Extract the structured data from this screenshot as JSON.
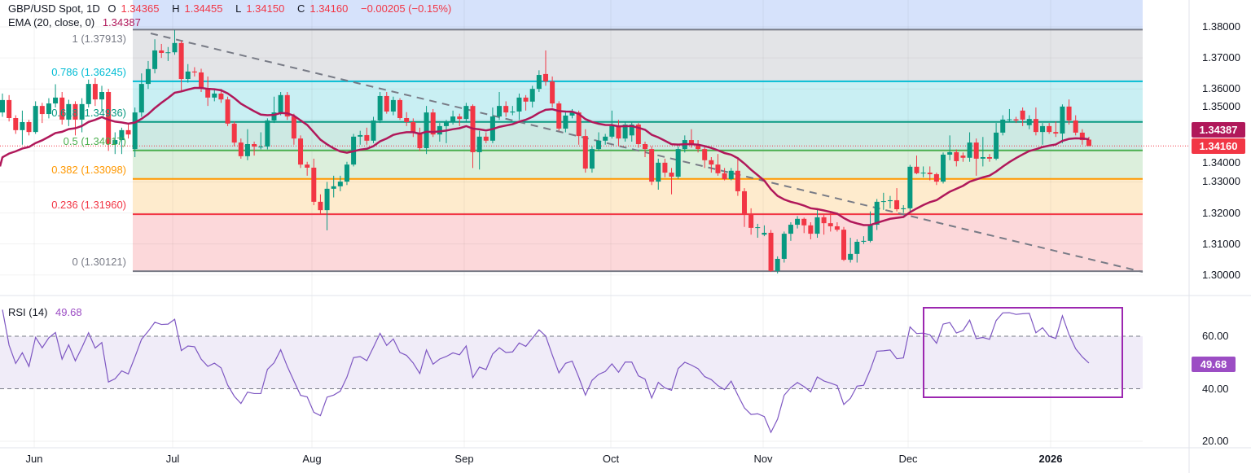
{
  "header": {
    "symbol": "GBP/USD Spot, 1D",
    "o_label": "O",
    "o": "1.34365",
    "h_label": "H",
    "h": "1.34455",
    "l_label": "L",
    "l": "1.34150",
    "c_label": "C",
    "c": "1.34160",
    "change": "−0.00205 (−0.15%)",
    "ema_label": "EMA (20, close, 0)",
    "ema_value": "1.34387"
  },
  "rsi_header": {
    "label": "RSI (14)",
    "value": "49.68"
  },
  "badges": {
    "ema": "1.34387",
    "close": "1.34160",
    "rsi": "49.68"
  },
  "colors": {
    "up": "#089981",
    "down": "#f23645",
    "ema": "#b0185a",
    "rsi": "#7e57c2",
    "rsi_box": "#9c27b0",
    "trendline": "#787b86"
  },
  "fib_levels": [
    {
      "label": "1 (1.37913)",
      "ratio": 1,
      "price": 1.37913,
      "color": "#787b86",
      "fill": "#e3e4e7"
    },
    {
      "label": "0.786 (1.36245)",
      "ratio": 0.786,
      "price": 1.36245,
      "color": "#00bcd4",
      "fill": "#c9eff3"
    },
    {
      "label": "0.618 (1.34936)",
      "ratio": 0.618,
      "price": 1.34936,
      "color": "#089981",
      "fill": "#cde9e3"
    },
    {
      "label": "0.5 (1.34017)",
      "ratio": 0.5,
      "price": 1.34017,
      "color": "#4caf50",
      "fill": "#dcefdc"
    },
    {
      "label": "0.382 (1.33098)",
      "ratio": 0.382,
      "price": 1.33098,
      "color": "#ff9800",
      "fill": "#feebcd"
    },
    {
      "label": "0.236 (1.31960)",
      "ratio": 0.236,
      "price": 1.3196,
      "color": "#f23645",
      "fill": "#fcd8da"
    },
    {
      "label": "0 (1.30121)",
      "ratio": 0,
      "price": 1.30121,
      "color": "#787b86",
      "fill": null
    }
  ],
  "price_axis": [
    "1.38000",
    "1.37000",
    "1.36000",
    "1.35000",
    "1.34000",
    "1.33000",
    "1.32000",
    "1.31000",
    "1.30000"
  ],
  "rsi_axis": [
    "60.00",
    "40.00",
    "20.00"
  ],
  "x_axis": [
    {
      "label": "Jun",
      "bold": false
    },
    {
      "label": "Jul",
      "bold": false
    },
    {
      "label": "Aug",
      "bold": false
    },
    {
      "label": "Sep",
      "bold": false
    },
    {
      "label": "Oct",
      "bold": false
    },
    {
      "label": "Nov",
      "bold": false
    },
    {
      "label": "Dec",
      "bold": false
    },
    {
      "label": "2026",
      "bold": true
    }
  ],
  "chart_data": {
    "type": "candlestick",
    "title": "GBP/USD Spot, 1D",
    "ylim": [
      1.2985,
      1.3885
    ],
    "rsi_ylim": [
      15,
      75
    ],
    "rsi_bands": [
      40,
      60
    ],
    "ema_period": 20,
    "rsi_period": 14,
    "ohlc": [
      [
        1.3524,
        1.3585,
        1.351,
        1.3564
      ],
      [
        1.3564,
        1.358,
        1.3495,
        1.3506
      ],
      [
        1.3506,
        1.3515,
        1.3455,
        1.3467
      ],
      [
        1.3467,
        1.353,
        1.342,
        1.3493
      ],
      [
        1.3493,
        1.35,
        1.345,
        1.3461
      ],
      [
        1.3461,
        1.356,
        1.3455,
        1.3545
      ],
      [
        1.3545,
        1.3555,
        1.349,
        1.3519
      ],
      [
        1.3519,
        1.357,
        1.3505,
        1.3553
      ],
      [
        1.3553,
        1.3615,
        1.354,
        1.3572
      ],
      [
        1.3572,
        1.359,
        1.3485,
        1.3501
      ],
      [
        1.3501,
        1.3565,
        1.348,
        1.3551
      ],
      [
        1.3551,
        1.356,
        1.345,
        1.3501
      ],
      [
        1.3501,
        1.357,
        1.346,
        1.3551
      ],
      [
        1.3551,
        1.363,
        1.354,
        1.3616
      ],
      [
        1.3616,
        1.3635,
        1.3545,
        1.3566
      ],
      [
        1.3566,
        1.361,
        1.353,
        1.359
      ],
      [
        1.359,
        1.36,
        1.34,
        1.3422
      ],
      [
        1.3422,
        1.346,
        1.339,
        1.3435
      ],
      [
        1.3435,
        1.3475,
        1.339,
        1.3467
      ],
      [
        1.3467,
        1.349,
        1.344,
        1.3453
      ],
      [
        1.3406,
        1.354,
        1.338,
        1.3524
      ],
      [
        1.3524,
        1.365,
        1.351,
        1.3616
      ],
      [
        1.3616,
        1.369,
        1.36,
        1.3664
      ],
      [
        1.3664,
        1.376,
        1.365,
        1.3724
      ],
      [
        1.3724,
        1.3745,
        1.37,
        1.3716
      ],
      [
        1.3716,
        1.3735,
        1.369,
        1.3718
      ],
      [
        1.3718,
        1.379,
        1.371,
        1.3748
      ],
      [
        1.3748,
        1.3755,
        1.3595,
        1.3632
      ],
      [
        1.3632,
        1.368,
        1.362,
        1.3656
      ],
      [
        1.3656,
        1.367,
        1.364,
        1.3653
      ],
      [
        1.3653,
        1.3665,
        1.359,
        1.3603
      ],
      [
        1.3603,
        1.364,
        1.3545,
        1.3572
      ],
      [
        1.3572,
        1.36,
        1.356,
        1.3585
      ],
      [
        1.3585,
        1.36,
        1.3555,
        1.3566
      ],
      [
        1.3566,
        1.3575,
        1.348,
        1.3488
      ],
      [
        1.3488,
        1.3495,
        1.3415,
        1.3427
      ],
      [
        1.3427,
        1.344,
        1.3375,
        1.3383
      ],
      [
        1.3383,
        1.347,
        1.337,
        1.3422
      ],
      [
        1.3422,
        1.343,
        1.3385,
        1.3414
      ],
      [
        1.3414,
        1.346,
        1.3405,
        1.3414
      ],
      [
        1.3414,
        1.3505,
        1.3405,
        1.3498
      ],
      [
        1.3498,
        1.3575,
        1.349,
        1.3524
      ],
      [
        1.3524,
        1.359,
        1.3515,
        1.358
      ],
      [
        1.358,
        1.359,
        1.35,
        1.3511
      ],
      [
        1.3511,
        1.352,
        1.342,
        1.344
      ],
      [
        1.344,
        1.345,
        1.3345,
        1.3356
      ],
      [
        1.3356,
        1.3365,
        1.332,
        1.3346
      ],
      [
        1.3346,
        1.3375,
        1.3225,
        1.3236
      ],
      [
        1.3236,
        1.326,
        1.3196,
        1.3209
      ],
      [
        1.3209,
        1.33,
        1.3144,
        1.3278
      ],
      [
        1.3278,
        1.332,
        1.325,
        1.3286
      ],
      [
        1.3286,
        1.332,
        1.327,
        1.3301
      ],
      [
        1.3301,
        1.3365,
        1.329,
        1.3356
      ],
      [
        1.3356,
        1.3455,
        1.335,
        1.3446
      ],
      [
        1.3446,
        1.3465,
        1.342,
        1.3451
      ],
      [
        1.3451,
        1.3475,
        1.342,
        1.3433
      ],
      [
        1.3433,
        1.351,
        1.3425,
        1.3498
      ],
      [
        1.3498,
        1.359,
        1.349,
        1.3577
      ],
      [
        1.3577,
        1.359,
        1.352,
        1.3527
      ],
      [
        1.3527,
        1.3575,
        1.3515,
        1.3564
      ],
      [
        1.3564,
        1.357,
        1.35,
        1.3506
      ],
      [
        1.3506,
        1.3525,
        1.348,
        1.3493
      ],
      [
        1.3493,
        1.3505,
        1.3445,
        1.3459
      ],
      [
        1.3459,
        1.3475,
        1.34,
        1.3409
      ],
      [
        1.3409,
        1.3545,
        1.339,
        1.3524
      ],
      [
        1.3524,
        1.3535,
        1.3445,
        1.3453
      ],
      [
        1.3453,
        1.349,
        1.343,
        1.348
      ],
      [
        1.348,
        1.35,
        1.3425,
        1.3493
      ],
      [
        1.3493,
        1.353,
        1.3485,
        1.3511
      ],
      [
        1.3511,
        1.352,
        1.348,
        1.3503
      ],
      [
        1.3503,
        1.3555,
        1.3495,
        1.3545
      ],
      [
        1.3545,
        1.355,
        1.3345,
        1.3396
      ],
      [
        1.3396,
        1.3465,
        1.334,
        1.3446
      ],
      [
        1.3446,
        1.346,
        1.3425,
        1.3433
      ],
      [
        1.3433,
        1.354,
        1.3425,
        1.3511
      ],
      [
        1.3511,
        1.359,
        1.35,
        1.3545
      ],
      [
        1.3545,
        1.356,
        1.351,
        1.3524
      ],
      [
        1.3524,
        1.3545,
        1.3515,
        1.3527
      ],
      [
        1.3527,
        1.3585,
        1.35,
        1.3572
      ],
      [
        1.3572,
        1.358,
        1.353,
        1.3559
      ],
      [
        1.3559,
        1.361,
        1.354,
        1.36
      ],
      [
        1.36,
        1.366,
        1.359,
        1.3645
      ],
      [
        1.3648,
        1.3724,
        1.361,
        1.3624
      ],
      [
        1.3624,
        1.364,
        1.354,
        1.3553
      ],
      [
        1.3553,
        1.356,
        1.3465,
        1.3472
      ],
      [
        1.3472,
        1.353,
        1.346,
        1.3514
      ],
      [
        1.3514,
        1.3535,
        1.3505,
        1.3524
      ],
      [
        1.3524,
        1.353,
        1.342,
        1.3448
      ],
      [
        1.3448,
        1.347,
        1.333,
        1.3343
      ],
      [
        1.3343,
        1.3415,
        1.333,
        1.3406
      ],
      [
        1.3406,
        1.346,
        1.34,
        1.3433
      ],
      [
        1.3433,
        1.3455,
        1.342,
        1.3446
      ],
      [
        1.3446,
        1.353,
        1.344,
        1.348
      ],
      [
        1.348,
        1.35,
        1.3415,
        1.344
      ],
      [
        1.344,
        1.3495,
        1.343,
        1.3485
      ],
      [
        1.345,
        1.3495,
        1.343,
        1.3485
      ],
      [
        1.3485,
        1.349,
        1.341,
        1.3422
      ],
      [
        1.3422,
        1.343,
        1.338,
        1.3406
      ],
      [
        1.3406,
        1.3415,
        1.329,
        1.3301
      ],
      [
        1.3301,
        1.3375,
        1.3275,
        1.3362
      ],
      [
        1.3362,
        1.3375,
        1.3315,
        1.333
      ],
      [
        1.333,
        1.3345,
        1.326,
        1.3317
      ],
      [
        1.3317,
        1.3415,
        1.331,
        1.3406
      ],
      [
        1.3406,
        1.345,
        1.3395,
        1.3435
      ],
      [
        1.3435,
        1.347,
        1.341,
        1.3422
      ],
      [
        1.3422,
        1.3435,
        1.3395,
        1.3406
      ],
      [
        1.3406,
        1.3415,
        1.3345,
        1.337
      ],
      [
        1.337,
        1.338,
        1.333,
        1.3356
      ],
      [
        1.3356,
        1.339,
        1.332,
        1.3328
      ],
      [
        1.3328,
        1.3345,
        1.3305,
        1.3309
      ],
      [
        1.3309,
        1.3345,
        1.3305,
        1.3336
      ],
      [
        1.3336,
        1.338,
        1.3255,
        1.327
      ],
      [
        1.327,
        1.328,
        1.3155,
        1.3196
      ],
      [
        1.3196,
        1.3215,
        1.313,
        1.3152
      ],
      [
        1.3152,
        1.3165,
        1.312,
        1.3154
      ],
      [
        1.313,
        1.316,
        1.3125,
        1.3136
      ],
      [
        1.3136,
        1.3145,
        1.301,
        1.3013
      ],
      [
        1.3013,
        1.306,
        1.3005,
        1.3052
      ],
      [
        1.3052,
        1.314,
        1.304,
        1.3133
      ],
      [
        1.3133,
        1.317,
        1.311,
        1.3162
      ],
      [
        1.3162,
        1.319,
        1.315,
        1.3181
      ],
      [
        1.3181,
        1.3185,
        1.3135,
        1.316
      ],
      [
        1.316,
        1.317,
        1.3115,
        1.3133
      ],
      [
        1.3133,
        1.3215,
        1.312,
        1.3186
      ],
      [
        1.3186,
        1.3195,
        1.313,
        1.3167
      ],
      [
        1.3167,
        1.3205,
        1.314,
        1.3157
      ],
      [
        1.3157,
        1.317,
        1.314,
        1.3146
      ],
      [
        1.3146,
        1.3155,
        1.3045,
        1.3049
      ],
      [
        1.3049,
        1.312,
        1.304,
        1.3068
      ],
      [
        1.3068,
        1.3115,
        1.304,
        1.3107
      ],
      [
        1.3107,
        1.3125,
        1.31,
        1.311
      ],
      [
        1.311,
        1.3205,
        1.3105,
        1.3162
      ],
      [
        1.3162,
        1.3245,
        1.3145,
        1.3236
      ],
      [
        1.3236,
        1.3265,
        1.321,
        1.3238
      ],
      [
        1.3238,
        1.3255,
        1.3215,
        1.3241
      ],
      [
        1.3241,
        1.328,
        1.3205,
        1.3212
      ],
      [
        1.3212,
        1.3225,
        1.32,
        1.3215
      ],
      [
        1.3215,
        1.3355,
        1.3205,
        1.3349
      ],
      [
        1.3349,
        1.3385,
        1.3325,
        1.3328
      ],
      [
        1.3328,
        1.335,
        1.3315,
        1.333
      ],
      [
        1.333,
        1.335,
        1.3305,
        1.3325
      ],
      [
        1.3325,
        1.333,
        1.329,
        1.3301
      ],
      [
        1.3301,
        1.3395,
        1.3295,
        1.3388
      ],
      [
        1.3388,
        1.345,
        1.337,
        1.3396
      ],
      [
        1.3396,
        1.3405,
        1.335,
        1.3367
      ],
      [
        1.3385,
        1.3395,
        1.3365,
        1.3378
      ],
      [
        1.3378,
        1.346,
        1.3365,
        1.3427
      ],
      [
        1.3427,
        1.344,
        1.332,
        1.3375
      ],
      [
        1.3375,
        1.3445,
        1.335,
        1.338
      ],
      [
        1.338,
        1.339,
        1.3365,
        1.3375
      ],
      [
        1.3375,
        1.349,
        1.337,
        1.3459
      ],
      [
        1.3459,
        1.3515,
        1.345,
        1.3501
      ],
      [
        1.3501,
        1.3535,
        1.3495,
        1.3502
      ],
      [
        1.3502,
        1.351,
        1.349,
        1.3498
      ],
      [
        1.353,
        1.354,
        1.348,
        1.3501
      ],
      [
        1.3483,
        1.3515,
        1.347,
        1.3503
      ],
      [
        1.3503,
        1.354,
        1.345,
        1.3461
      ],
      [
        1.3461,
        1.349,
        1.342,
        1.348
      ],
      [
        1.348,
        1.349,
        1.3455,
        1.3461
      ],
      [
        1.3461,
        1.3495,
        1.3445,
        1.3456
      ],
      [
        1.3456,
        1.355,
        1.3425,
        1.3543
      ],
      [
        1.3543,
        1.3566,
        1.3485,
        1.3498
      ],
      [
        1.3498,
        1.3515,
        1.345,
        1.3459
      ],
      [
        1.3459,
        1.347,
        1.342,
        1.3435
      ],
      [
        1.34365,
        1.34455,
        1.3415,
        1.3416
      ]
    ]
  }
}
